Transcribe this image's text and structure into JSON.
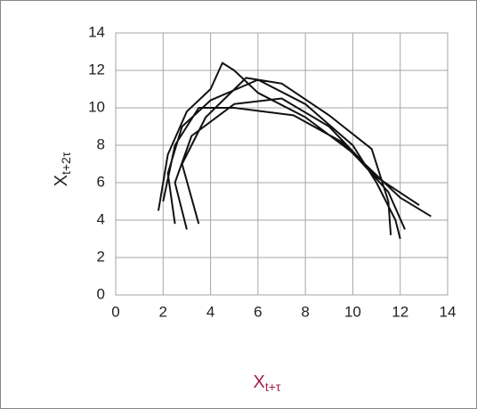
{
  "chart_data": {
    "type": "line",
    "x_label": {
      "base": "X",
      "sub": "t+τ"
    },
    "y_label": {
      "base": "X",
      "sub": "t+2τ"
    },
    "series": [
      {
        "color": "#111111",
        "x": [
          1.8,
          2.2,
          3,
          4,
          4.5,
          5,
          6,
          8,
          10,
          11.5,
          12.2,
          null,
          2.5,
          2.2,
          2.8,
          4,
          6,
          8,
          10,
          11,
          11.8,
          12,
          null,
          3,
          2.5,
          3.2,
          5,
          7,
          9,
          10.5,
          12,
          13.3,
          null,
          3.5,
          2.8,
          3.8,
          5.5,
          7,
          9,
          10.8,
          11.5,
          11.6,
          null,
          2,
          2.5,
          3.5,
          5,
          7.5,
          9.5,
          11,
          12.8
        ],
        "y": [
          4.5,
          7.5,
          9.8,
          11,
          12.4,
          12,
          10.8,
          9.5,
          7.6,
          5.5,
          3.5,
          null,
          3.8,
          6.5,
          9,
          10.4,
          11.5,
          10.2,
          8,
          6,
          4,
          3,
          null,
          3.5,
          6,
          8.5,
          10.2,
          10.5,
          9,
          7,
          5.2,
          4.2,
          null,
          3.8,
          7,
          9.5,
          11.6,
          11.3,
          9.6,
          7.8,
          5,
          3.2,
          null,
          5,
          8,
          10,
          10,
          9.6,
          8.2,
          6.3,
          4.8
        ]
      }
    ],
    "xlim": [
      0,
      14
    ],
    "ylim": [
      0,
      14
    ],
    "xticks": [
      0,
      2,
      4,
      6,
      8,
      10,
      12,
      14
    ],
    "yticks": [
      0,
      2,
      4,
      6,
      8,
      10,
      12,
      14
    ],
    "grid": true
  }
}
